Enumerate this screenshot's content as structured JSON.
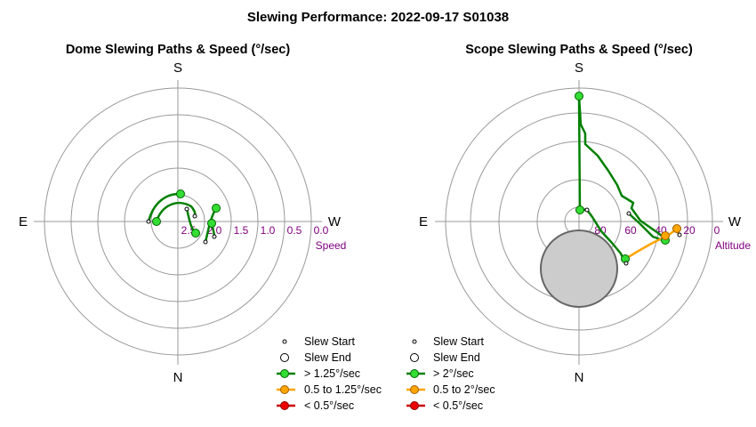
{
  "title": "Slewing Performance: 2022-09-17 S01038",
  "chart_data": [
    {
      "type": "polar",
      "title": "Dome Slewing Paths & Speed (°/sec)",
      "directions": {
        "top": "S",
        "bottom": "N",
        "left": "E",
        "right": "W"
      },
      "radial_axis_label": "Speed",
      "radial_ticks": [
        "2.5",
        "2.0",
        "1.5",
        "1.0",
        "0.5",
        "0.0"
      ],
      "legend": [
        "Slew Start",
        "Slew End",
        "> 1.25°/sec",
        "0.5 to 1.25°/sec",
        "< 0.5°/sec"
      ],
      "colors": {
        "fast": "#008000",
        "medium": "#ffa500",
        "slow": "#ff0000",
        "ring": "#999999"
      }
    },
    {
      "type": "polar",
      "title": "Scope Slewing Paths & Speed (°/sec)",
      "directions": {
        "top": "S",
        "bottom": "N",
        "left": "E",
        "right": "W"
      },
      "radial_axis_label": "Altitude",
      "radial_ticks": [
        "80",
        "60",
        "40",
        "20",
        "0"
      ],
      "legend": [
        "Slew Start",
        "Slew End",
        "> 2°/sec",
        "0.5 to 2°/sec",
        "< 0.5°/sec"
      ],
      "colors": {
        "fast": "#008000",
        "medium": "#ffa500",
        "slow": "#ff0000",
        "zenith_exclusion": "#cccccc"
      }
    }
  ]
}
